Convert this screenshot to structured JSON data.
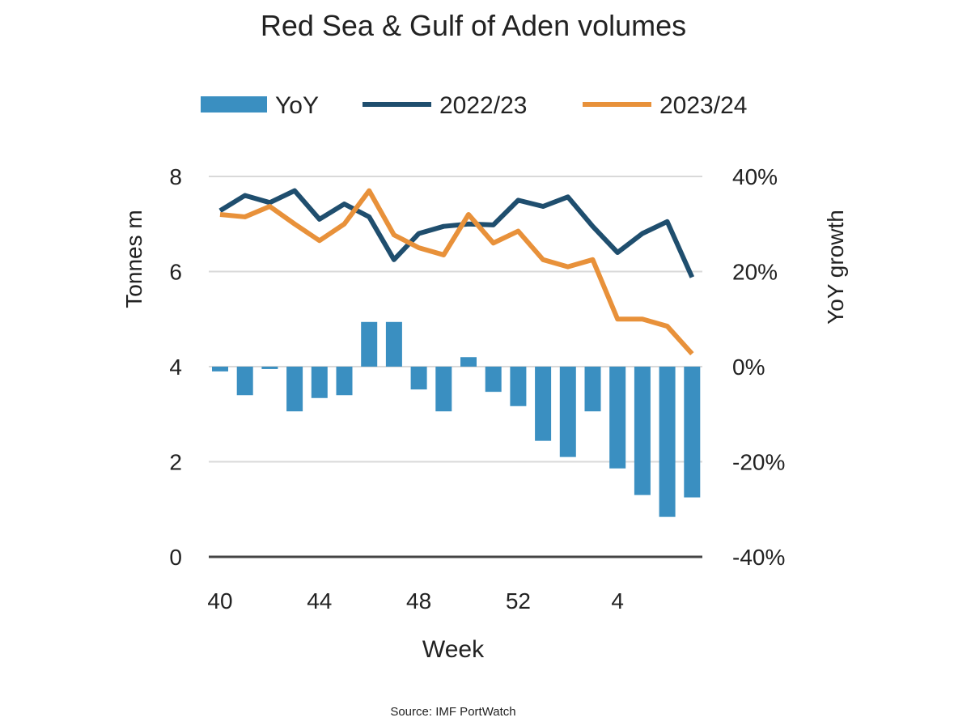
{
  "chart_data": {
    "type": "bar+line",
    "title": "Red Sea & Gulf of Aden volumes",
    "xlabel": "Week",
    "ylabel_left": "Tonnes m",
    "ylabel_right": "YoY growth",
    "source": "Source: IMF PortWatch",
    "legend_position": "top",
    "grid": true,
    "ylim_left": [
      0,
      8
    ],
    "ylim_right": [
      -40,
      40
    ],
    "yticks_left": [
      "0",
      "2",
      "4",
      "6",
      "8"
    ],
    "yticks_right": [
      "-40%",
      "-20%",
      "0%",
      "20%",
      "40%"
    ],
    "x": [
      "40",
      "41",
      "42",
      "43",
      "44",
      "45",
      "46",
      "47",
      "48",
      "49",
      "50",
      "51",
      "52",
      "1",
      "2",
      "3",
      "4",
      "5",
      "6",
      "7"
    ],
    "xtick_labels": [
      "40",
      "44",
      "48",
      "52",
      "4"
    ],
    "series": [
      {
        "name": "YoY",
        "type": "bar",
        "axis": "right",
        "color": "#3a8fc1",
        "values": [
          -1,
          -6,
          -0.5,
          -9.4,
          -6.6,
          -6,
          9.4,
          9.4,
          -4.8,
          -9.4,
          2,
          -5.3,
          -8.3,
          -15.6,
          -19,
          -9.4,
          -21.4,
          -27,
          -31.6,
          -27.5
        ]
      },
      {
        "name": "2022/23",
        "type": "line",
        "axis": "left",
        "color": "#1f4e6e",
        "values": [
          7.28,
          7.6,
          7.45,
          7.7,
          7.1,
          7.42,
          7.15,
          6.25,
          6.8,
          6.95,
          7.0,
          6.98,
          7.5,
          7.37,
          7.57,
          6.95,
          6.4,
          6.8,
          7.05,
          5.88
        ]
      },
      {
        "name": "2023/24",
        "type": "line",
        "axis": "left",
        "color": "#e8913a",
        "values": [
          7.2,
          7.15,
          7.37,
          7.0,
          6.65,
          7.0,
          7.7,
          6.77,
          6.5,
          6.35,
          7.2,
          6.6,
          6.85,
          6.25,
          6.1,
          6.25,
          5.0,
          5.0,
          4.85,
          4.27
        ]
      }
    ]
  }
}
